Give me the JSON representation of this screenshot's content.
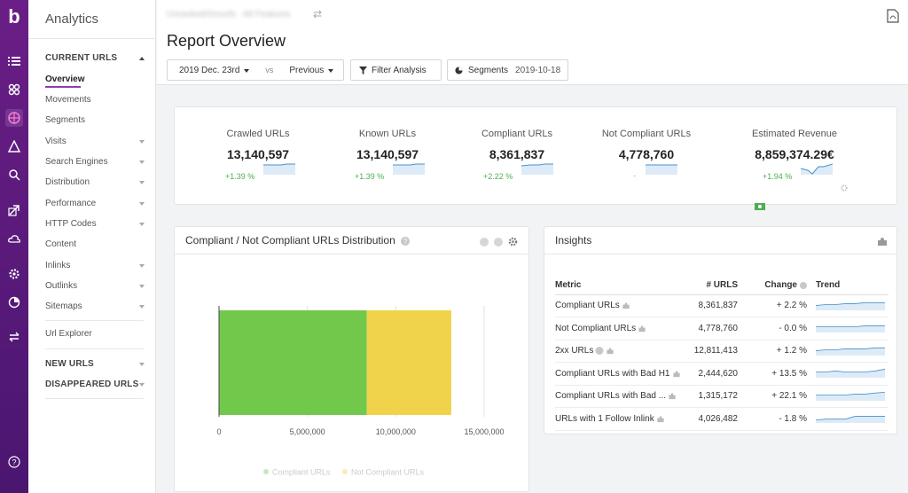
{
  "app": {
    "title": "Analytics"
  },
  "rail": {
    "icons": [
      "logo",
      "list-icon",
      "network-icon",
      "segment-icon",
      "alert-icon",
      "search-icon",
      "export-icon",
      "cloud-icon",
      "settings-icon",
      "pie-icon",
      "swap-icon",
      "help-icon"
    ]
  },
  "sidenav": {
    "current_header": "CURRENT URLS",
    "items": [
      {
        "label": "Overview",
        "active": true,
        "caret": false
      },
      {
        "label": "Movements",
        "caret": false
      },
      {
        "label": "Segments",
        "caret": false
      },
      {
        "label": "Visits",
        "caret": true
      },
      {
        "label": "Search Engines",
        "caret": true
      },
      {
        "label": "Distribution",
        "caret": true
      },
      {
        "label": "Performance",
        "caret": true
      },
      {
        "label": "HTTP Codes",
        "caret": true
      },
      {
        "label": "Content",
        "caret": false
      },
      {
        "label": "Inlinks",
        "caret": true
      },
      {
        "label": "Outlinks",
        "caret": true
      },
      {
        "label": "Sitemaps",
        "caret": true
      }
    ],
    "url_explorer": "Url Explorer",
    "new_header": "NEW URLS",
    "disappeared_header": "DISAPPEARED URLS"
  },
  "header": {
    "project": "Unranked/Smurfs · All Features",
    "title": "Report Overview",
    "date_label": "2019 Dec. 23rd",
    "vs_label": "vs",
    "compare_label": "Previous",
    "filter_label": "Filter Analysis",
    "segments_label": "Segments",
    "segments_date": "2019-10-18"
  },
  "kpis": [
    {
      "label": "Crawled URLs",
      "value": "13,140,597",
      "change": "+1.39 %"
    },
    {
      "label": "Known URLs",
      "value": "13,140,597",
      "change": "+1.39 %"
    },
    {
      "label": "Compliant URLs",
      "value": "8,361,837",
      "change": "+2.22 %"
    },
    {
      "label": "Not Compliant URLs",
      "value": "4,778,760",
      "change": "-"
    },
    {
      "label": "Estimated Revenue",
      "value": "8,859,374.29€",
      "change": "+1.94 %"
    }
  ],
  "distribution": {
    "title": "Compliant / Not Compliant URLs Distribution",
    "chart_data": {
      "type": "bar",
      "orientation": "horizontal",
      "stacked": true,
      "series": [
        {
          "name": "Compliant URLs",
          "values": [
            8361837
          ],
          "color": "#72c84a"
        },
        {
          "name": "Not Compliant URLs",
          "values": [
            4778760
          ],
          "color": "#f0d34a"
        }
      ],
      "xticks": [
        "0",
        "5,000,000",
        "10,000,000",
        "15,000,000"
      ],
      "xlim": [
        0,
        15000000
      ],
      "legend": "bottom"
    }
  },
  "insights": {
    "title": "Insights",
    "columns": [
      "Metric",
      "# URLS",
      "Change",
      "Trend"
    ],
    "rows": [
      {
        "metric": "Compliant URLs",
        "urls": "8,361,837",
        "change": "+ 2.2 %",
        "tone": "orange"
      },
      {
        "metric": "Not Compliant URLs",
        "urls": "4,778,760",
        "change": "- 0.0 %",
        "tone": "orange"
      },
      {
        "metric": "2xx URLs",
        "urls": "12,811,413",
        "change": "+ 1.2 %",
        "tone": "orange"
      },
      {
        "metric": "Compliant URLs with Bad H1",
        "urls": "2,444,620",
        "change": "+ 13.5 %",
        "tone": "red"
      },
      {
        "metric": "Compliant URLs with Bad ...",
        "urls": "1,315,172",
        "change": "+ 22.1 %",
        "tone": "red"
      },
      {
        "metric": "URLs with 1 Follow Inlink",
        "urls": "4,026,482",
        "change": "- 1.8 %",
        "tone": "orange"
      }
    ]
  }
}
